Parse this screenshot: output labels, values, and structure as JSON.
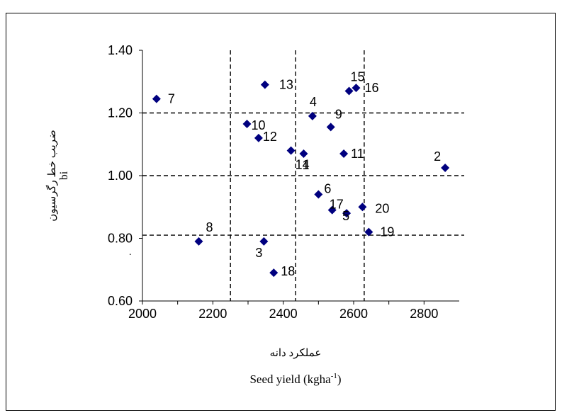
{
  "chart_data": {
    "type": "scatter",
    "title": "",
    "xlabel_fa": "عملکرد دانه",
    "xlabel_en": "Seed yield (kgha",
    "xlabel_en_sup": "-1",
    "xlabel_en_close": ")",
    "ylabel_fa": "ضریب خط رگرسیون",
    "ylabel_en": "bi",
    "xlim": [
      2000,
      2900
    ],
    "ylim": [
      0.6,
      1.4
    ],
    "x_ticks": [
      2000,
      2200,
      2400,
      2600,
      2800
    ],
    "y_ticks": [
      "0.60",
      "0.80",
      "1.00",
      "1.20",
      "1.40"
    ],
    "marker_color": "#00007f",
    "grid": false,
    "reference_lines": {
      "x": [
        2250,
        2435,
        2630
      ],
      "y": [
        0.81,
        1.0,
        1.2
      ]
    },
    "points": [
      {
        "label": "1",
        "x": 2458,
        "y": 1.07
      },
      {
        "label": "2",
        "x": 2860,
        "y": 1.025
      },
      {
        "label": "3",
        "x": 2345,
        "y": 0.79
      },
      {
        "label": "4",
        "x": 2483,
        "y": 1.19
      },
      {
        "label": "5",
        "x": 2580,
        "y": 0.88
      },
      {
        "label": "6",
        "x": 2500,
        "y": 0.94
      },
      {
        "label": "7",
        "x": 2040,
        "y": 1.245
      },
      {
        "label": "8",
        "x": 2160,
        "y": 0.79
      },
      {
        "label": "9",
        "x": 2535,
        "y": 1.155
      },
      {
        "label": "10",
        "x": 2297,
        "y": 1.165
      },
      {
        "label": "11",
        "x": 2572,
        "y": 1.07
      },
      {
        "label": "12",
        "x": 2330,
        "y": 1.12
      },
      {
        "label": "13",
        "x": 2348,
        "y": 1.29
      },
      {
        "label": "14",
        "x": 2422,
        "y": 1.08
      },
      {
        "label": "15",
        "x": 2587,
        "y": 1.27
      },
      {
        "label": "16",
        "x": 2607,
        "y": 1.28
      },
      {
        "label": "17",
        "x": 2539,
        "y": 0.89
      },
      {
        "label": "18",
        "x": 2373,
        "y": 0.69
      },
      {
        "label": "19",
        "x": 2643,
        "y": 0.82
      },
      {
        "label": "20",
        "x": 2625,
        "y": 0.9
      }
    ]
  },
  "stray_mark": "."
}
